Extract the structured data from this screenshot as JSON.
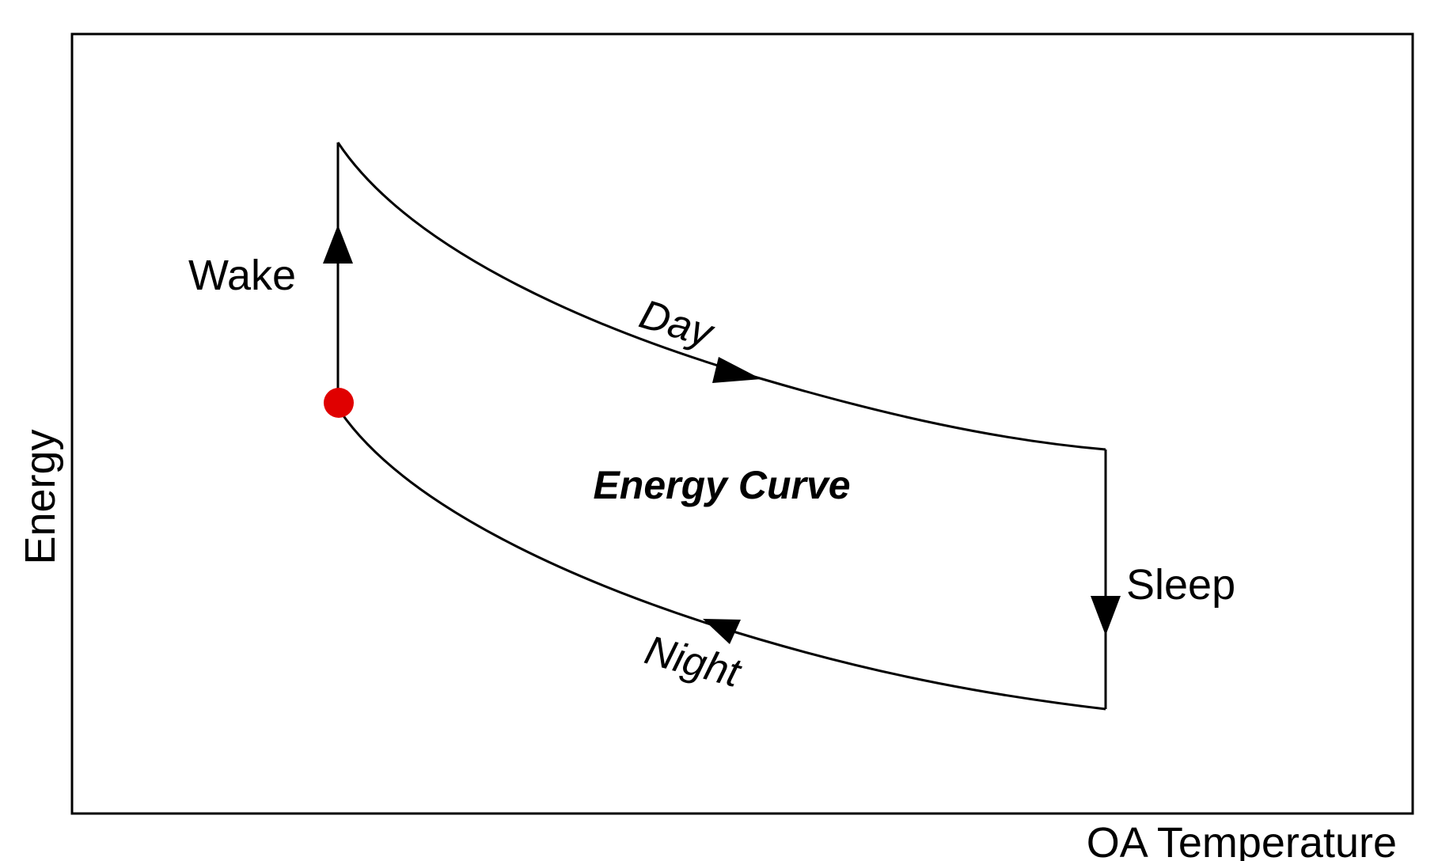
{
  "title": "Energy Curve",
  "axes": {
    "xlabel": "OA Temperature",
    "ylabel": "Energy"
  },
  "phases": {
    "wake": "Wake",
    "day": "Day",
    "sleep": "Sleep",
    "night": "Night"
  },
  "colors": {
    "line": "#000000",
    "start_point": "#e00000",
    "background": "#ffffff"
  }
}
